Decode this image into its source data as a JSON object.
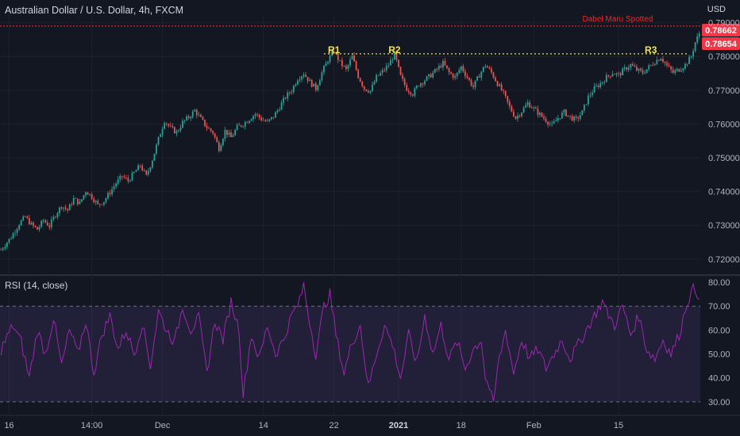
{
  "header": {
    "title": "Australian Dollar / U.S. Dollar, 4h, FXCM",
    "currency": "USD"
  },
  "rsi_panel": {
    "label": "RSI (14, close)"
  },
  "colors": {
    "background": "#131722",
    "up": "#26a69a",
    "down": "#ef5350",
    "resistance": "#f5e642",
    "rsi_line": "#9c27b0",
    "rsi_band": "#7e57c2",
    "price_tag": "#f23645"
  },
  "chart_data": [
    {
      "type": "candlestick",
      "title": "Australian Dollar / U.S. Dollar, 4h, FXCM",
      "ylim": [
        0.7155,
        0.7925
      ],
      "y_ticks": [
        "0.72000",
        "0.73000",
        "0.74000",
        "0.75000",
        "0.76000",
        "0.77000",
        "0.78000",
        "0.79000"
      ],
      "x_tick_labels": [
        "16",
        "14:00",
        "Dec",
        "14",
        "22",
        "2021",
        "18",
        "Feb",
        "15"
      ],
      "price_path": [
        [
          0,
          0.7228
        ],
        [
          5,
          0.7265
        ],
        [
          9,
          0.7305
        ],
        [
          12,
          0.7325
        ],
        [
          15,
          0.7302
        ],
        [
          18,
          0.7288
        ],
        [
          21,
          0.7315
        ],
        [
          24,
          0.7298
        ],
        [
          27,
          0.7332
        ],
        [
          30,
          0.7358
        ],
        [
          33,
          0.7345
        ],
        [
          36,
          0.7378
        ],
        [
          39,
          0.7365
        ],
        [
          42,
          0.7402
        ],
        [
          45,
          0.7385
        ],
        [
          48,
          0.736
        ],
        [
          51,
          0.7372
        ],
        [
          54,
          0.7398
        ],
        [
          57,
          0.7425
        ],
        [
          60,
          0.7445
        ],
        [
          63,
          0.7432
        ],
        [
          66,
          0.7455
        ],
        [
          69,
          0.7478
        ],
        [
          72,
          0.7445
        ],
        [
          75,
          0.7495
        ],
        [
          78,
          0.7555
        ],
        [
          81,
          0.761
        ],
        [
          84,
          0.7588
        ],
        [
          87,
          0.7575
        ],
        [
          90,
          0.7605
        ],
        [
          93,
          0.762
        ],
        [
          96,
          0.764
        ],
        [
          99,
          0.7615
        ],
        [
          102,
          0.759
        ],
        [
          105,
          0.7575
        ],
        [
          108,
          0.7528
        ],
        [
          111,
          0.758
        ],
        [
          114,
          0.756
        ],
        [
          117,
          0.759
        ],
        [
          120,
          0.76
        ],
        [
          123,
          0.7615
        ],
        [
          126,
          0.763
        ],
        [
          129,
          0.7615
        ],
        [
          132,
          0.7605
        ],
        [
          135,
          0.7622
        ],
        [
          138,
          0.765
        ],
        [
          141,
          0.768
        ],
        [
          144,
          0.77
        ],
        [
          147,
          0.7735
        ],
        [
          150,
          0.775
        ],
        [
          153,
          0.7725
        ],
        [
          156,
          0.7705
        ],
        [
          159,
          0.7752
        ],
        [
          162,
          0.779
        ],
        [
          165,
          0.7815
        ],
        [
          168,
          0.7782
        ],
        [
          171,
          0.776
        ],
        [
          174,
          0.78
        ],
        [
          177,
          0.7742
        ],
        [
          180,
          0.7705
        ],
        [
          183,
          0.7698
        ],
        [
          186,
          0.7738
        ],
        [
          189,
          0.7755
        ],
        [
          192,
          0.7775
        ],
        [
          195,
          0.7808
        ],
        [
          198,
          0.774
        ],
        [
          201,
          0.7705
        ],
        [
          204,
          0.769
        ],
        [
          207,
          0.7718
        ],
        [
          210,
          0.773
        ],
        [
          213,
          0.7745
        ],
        [
          216,
          0.7762
        ],
        [
          219,
          0.778
        ],
        [
          222,
          0.7752
        ],
        [
          225,
          0.7738
        ],
        [
          228,
          0.777
        ],
        [
          231,
          0.7738
        ],
        [
          234,
          0.771
        ],
        [
          237,
          0.7745
        ],
        [
          240,
          0.7775
        ],
        [
          243,
          0.7752
        ],
        [
          246,
          0.772
        ],
        [
          249,
          0.769
        ],
        [
          252,
          0.765
        ],
        [
          255,
          0.7618
        ],
        [
          258,
          0.7638
        ],
        [
          261,
          0.7662
        ],
        [
          264,
          0.7645
        ],
        [
          267,
          0.7628
        ],
        [
          270,
          0.7612
        ],
        [
          273,
          0.7595
        ],
        [
          276,
          0.7618
        ],
        [
          279,
          0.7635
        ],
        [
          282,
          0.762
        ],
        [
          285,
          0.7612
        ],
        [
          288,
          0.7635
        ],
        [
          291,
          0.768
        ],
        [
          294,
          0.7705
        ],
        [
          297,
          0.772
        ],
        [
          300,
          0.7738
        ],
        [
          303,
          0.7752
        ],
        [
          306,
          0.7745
        ],
        [
          309,
          0.7762
        ],
        [
          312,
          0.7775
        ],
        [
          315,
          0.776
        ],
        [
          318,
          0.7752
        ],
        [
          321,
          0.7768
        ],
        [
          324,
          0.7785
        ],
        [
          327,
          0.7798
        ],
        [
          330,
          0.7772
        ],
        [
          333,
          0.7752
        ],
        [
          336,
          0.7762
        ],
        [
          339,
          0.7775
        ],
        [
          342,
          0.78
        ],
        [
          344,
          0.7842
        ],
        [
          346,
          0.7868
        ]
      ],
      "resistance": {
        "level": 0.7808,
        "labels": [
          {
            "name": "R1",
            "bar": 165
          },
          {
            "name": "R2",
            "bar": 195
          },
          {
            "name": "R3",
            "bar": 322
          }
        ]
      },
      "reference_line": 0.789,
      "annotation": "Dabel Maru Spotted",
      "price_tags": [
        "0.78662",
        "0.78654"
      ]
    },
    {
      "type": "line",
      "title": "RSI (14, close)",
      "ylim": [
        25,
        82
      ],
      "band": [
        30,
        70
      ],
      "y_ticks": [
        "30.00",
        "40.00",
        "50.00",
        "60.00",
        "70.00",
        "80.00"
      ],
      "rsi_path": [
        [
          0,
          52
        ],
        [
          6,
          62
        ],
        [
          10,
          55
        ],
        [
          14,
          40
        ],
        [
          18,
          60
        ],
        [
          22,
          50
        ],
        [
          26,
          65
        ],
        [
          30,
          45
        ],
        [
          34,
          60
        ],
        [
          38,
          50
        ],
        [
          42,
          64
        ],
        [
          46,
          42
        ],
        [
          50,
          58
        ],
        [
          54,
          66
        ],
        [
          58,
          52
        ],
        [
          62,
          60
        ],
        [
          66,
          50
        ],
        [
          70,
          63
        ],
        [
          74,
          45
        ],
        [
          78,
          68
        ],
        [
          82,
          60
        ],
        [
          86,
          55
        ],
        [
          90,
          70
        ],
        [
          94,
          60
        ],
        [
          98,
          65
        ],
        [
          102,
          42
        ],
        [
          106,
          64
        ],
        [
          110,
          56
        ],
        [
          114,
          72
        ],
        [
          118,
          60
        ],
        [
          120,
          33
        ],
        [
          124,
          58
        ],
        [
          128,
          48
        ],
        [
          132,
          62
        ],
        [
          136,
          50
        ],
        [
          140,
          56
        ],
        [
          144,
          66
        ],
        [
          148,
          72
        ],
        [
          150,
          79
        ],
        [
          152,
          68
        ],
        [
          156,
          50
        ],
        [
          160,
          70
        ],
        [
          163,
          75
        ],
        [
          166,
          58
        ],
        [
          170,
          42
        ],
        [
          174,
          55
        ],
        [
          178,
          62
        ],
        [
          182,
          36
        ],
        [
          186,
          50
        ],
        [
          190,
          62
        ],
        [
          194,
          54
        ],
        [
          198,
          40
        ],
        [
          202,
          58
        ],
        [
          206,
          46
        ],
        [
          210,
          66
        ],
        [
          214,
          50
        ],
        [
          218,
          62
        ],
        [
          222,
          48
        ],
        [
          226,
          55
        ],
        [
          230,
          44
        ],
        [
          234,
          52
        ],
        [
          238,
          56
        ],
        [
          240,
          40
        ],
        [
          242,
          36
        ],
        [
          244,
          28
        ],
        [
          246,
          44
        ],
        [
          250,
          60
        ],
        [
          254,
          42
        ],
        [
          258,
          56
        ],
        [
          262,
          48
        ],
        [
          266,
          52
        ],
        [
          270,
          44
        ],
        [
          274,
          50
        ],
        [
          278,
          56
        ],
        [
          282,
          48
        ],
        [
          286,
          54
        ],
        [
          290,
          60
        ],
        [
          294,
          66
        ],
        [
          298,
          72
        ],
        [
          300,
          68
        ],
        [
          304,
          62
        ],
        [
          308,
          70
        ],
        [
          312,
          58
        ],
        [
          316,
          66
        ],
        [
          320,
          52
        ],
        [
          324,
          48
        ],
        [
          328,
          56
        ],
        [
          332,
          50
        ],
        [
          336,
          58
        ],
        [
          340,
          72
        ],
        [
          343,
          77
        ],
        [
          346,
          75
        ]
      ]
    }
  ]
}
